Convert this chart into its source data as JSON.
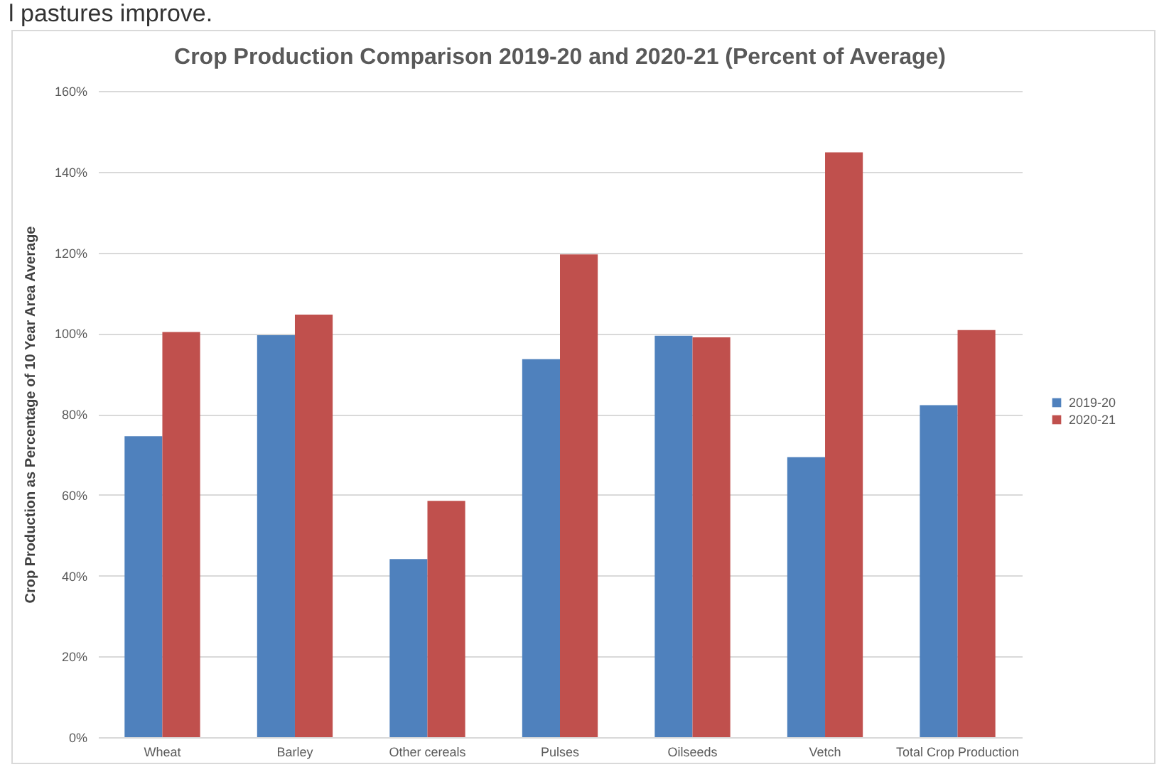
{
  "chart_data": {
    "type": "bar",
    "title": "Crop Production Comparison 2019-20 and 2020-21 (Percent of Average)",
    "ylabel": "Crop Production as Percentage of 10 Year Area Average",
    "annotations": [
      "l pastures improve."
    ],
    "categories": [
      "Wheat",
      "Barley",
      "Other cereals",
      "Pulses",
      "Oilseeds",
      "Vetch",
      "Total  Crop Production"
    ],
    "series": [
      {
        "name": "2019-20",
        "color": "#4f81bd",
        "values": [
          74.5,
          99.5,
          44.1,
          93.6,
          99.4,
          69.3,
          82.2
        ]
      },
      {
        "name": "2020-21",
        "color": "#c0504d",
        "values": [
          100.3,
          104.6,
          58.5,
          119.5,
          99.0,
          144.8,
          100.8
        ]
      }
    ],
    "ylim": [
      0,
      160
    ],
    "yticks": [
      {
        "value": 0,
        "label": "0%"
      },
      {
        "value": 20,
        "label": "20%"
      },
      {
        "value": 40,
        "label": "40%"
      },
      {
        "value": 60,
        "label": "60%"
      },
      {
        "value": 80,
        "label": "80%"
      },
      {
        "value": 100,
        "label": "100%"
      },
      {
        "value": 120,
        "label": "120%"
      },
      {
        "value": 140,
        "label": "140%"
      },
      {
        "value": 160,
        "label": "160%"
      }
    ],
    "grid": "y",
    "legend": "right"
  }
}
